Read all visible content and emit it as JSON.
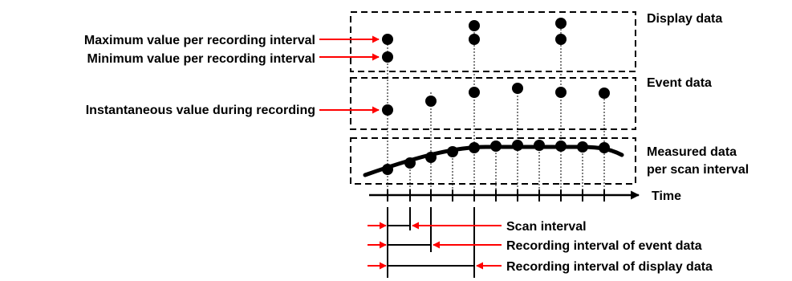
{
  "labels": {
    "display_data": "Display data",
    "event_data": "Event data",
    "measured_data_line1": "Measured data",
    "measured_data_line2": "per scan interval",
    "max_value": "Maximum value per recording interval",
    "min_value": "Minimum value per recording interval",
    "instantaneous_value": "Instantaneous value during recording",
    "time_axis": "Time",
    "scan_interval": "Scan interval",
    "event_recording_interval": "Recording interval of event data",
    "display_recording_interval": "Recording interval of display data"
  },
  "colors": {
    "ink": "#000000",
    "arrow": "#ff0000",
    "background": "#ffffff"
  }
}
